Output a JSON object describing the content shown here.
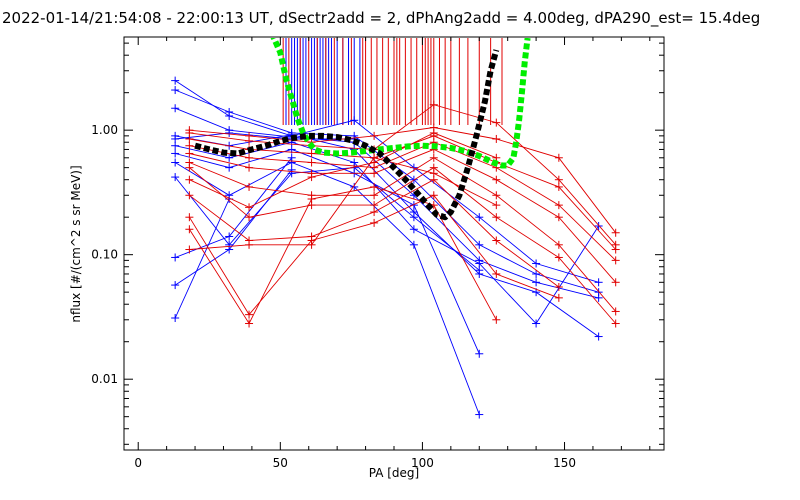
{
  "chart_data": {
    "type": "line",
    "title": "2022-01-14/21:54:08 - 22:00:13 UT, dSectr2add = 2, dPhAng2add = 4.00deg, dPA290_est=  15.4deg",
    "xlabel": "PA [deg]",
    "ylabel": "nflux [#/(cm^2 s sr MeV)]",
    "xlim": [
      -5,
      185
    ],
    "ylim": [
      0.0027,
      5.6
    ],
    "yscale": "log",
    "grid": false,
    "x_ticks": [
      0,
      50,
      100,
      150
    ],
    "x_tick_labels": [
      "0",
      "50",
      "100",
      "150"
    ],
    "y_ticks": [
      0.01,
      0.1,
      1.0
    ],
    "y_tick_labels": [
      "0.01",
      "0.10",
      "1.00"
    ],
    "colors": {
      "blue": "#0000ff",
      "red": "#e00000",
      "black": "#000000",
      "green": "#00ee00"
    },
    "series": [
      {
        "color": "blue",
        "x": [
          13,
          32,
          54,
          76,
          97,
          120,
          140,
          162
        ],
        "y": [
          2.5,
          1.3,
          0.9,
          1.2,
          0.5,
          0.2,
          0.085,
          0.06
        ]
      },
      {
        "color": "blue",
        "x": [
          13,
          32,
          54,
          76,
          97,
          120,
          140,
          162
        ],
        "y": [
          2.1,
          1.4,
          0.95,
          0.9,
          0.4,
          0.12,
          0.07,
          0.05
        ]
      },
      {
        "color": "blue",
        "x": [
          13,
          32,
          54,
          76,
          97,
          120,
          140,
          162
        ],
        "y": [
          1.5,
          1.0,
          0.88,
          0.8,
          0.3,
          0.09,
          0.06,
          0.045
        ]
      },
      {
        "color": "blue",
        "x": [
          13,
          32,
          54,
          76,
          97,
          120,
          140,
          162
        ],
        "y": [
          0.9,
          0.75,
          0.92,
          0.7,
          0.22,
          0.07,
          0.05,
          0.022
        ]
      },
      {
        "color": "blue",
        "x": [
          13,
          32,
          54,
          76,
          97,
          120,
          140,
          162
        ],
        "y": [
          0.75,
          0.6,
          0.8,
          0.55,
          0.16,
          0.085,
          0.028,
          0.17
        ]
      },
      {
        "color": "blue",
        "x": [
          13,
          32,
          54,
          76,
          97,
          120
        ],
        "y": [
          0.65,
          0.5,
          0.7,
          0.45,
          0.25,
          0.016
        ]
      },
      {
        "color": "blue",
        "x": [
          13,
          32,
          54,
          76,
          97,
          120
        ],
        "y": [
          0.55,
          0.3,
          0.55,
          0.35,
          0.12,
          0.0052
        ]
      },
      {
        "color": "blue",
        "x": [
          13,
          32,
          54,
          76,
          97,
          120
        ],
        "y": [
          0.42,
          0.12,
          0.45,
          0.5,
          0.2,
          0.075
        ]
      },
      {
        "color": "blue",
        "x": [
          13,
          32,
          54
        ],
        "y": [
          0.095,
          0.14,
          0.6
        ]
      },
      {
        "color": "blue",
        "x": [
          13,
          32,
          54
        ],
        "y": [
          0.057,
          0.11,
          0.48
        ]
      },
      {
        "color": "blue",
        "x": [
          13,
          32
        ],
        "y": [
          0.031,
          0.28
        ]
      },
      {
        "color": "blue",
        "x": [
          13,
          32,
          54,
          76
        ],
        "y": [
          0.85,
          0.95,
          0.85,
          0.85
        ]
      },
      {
        "color": "red",
        "x": [
          18,
          39,
          61,
          83,
          104,
          126,
          148,
          168
        ],
        "y": [
          1.0,
          0.9,
          0.8,
          0.9,
          1.05,
          0.85,
          0.6,
          0.15
        ]
      },
      {
        "color": "red",
        "x": [
          18,
          39,
          61,
          83,
          104,
          126,
          148,
          168
        ],
        "y": [
          0.95,
          0.82,
          0.75,
          0.7,
          1.6,
          1.15,
          0.4,
          0.12
        ]
      },
      {
        "color": "red",
        "x": [
          18,
          39,
          61,
          83,
          104,
          126,
          148,
          168
        ],
        "y": [
          0.85,
          0.7,
          0.65,
          0.6,
          0.9,
          0.55,
          0.35,
          0.11
        ]
      },
      {
        "color": "red",
        "x": [
          18,
          39,
          61,
          83,
          104,
          126,
          148,
          168
        ],
        "y": [
          0.75,
          0.6,
          0.55,
          0.5,
          0.8,
          0.5,
          0.25,
          0.09
        ]
      },
      {
        "color": "red",
        "x": [
          18,
          39,
          61,
          83,
          104,
          126,
          148,
          168
        ],
        "y": [
          0.65,
          0.5,
          0.45,
          0.45,
          0.7,
          0.4,
          0.2,
          0.06
        ]
      },
      {
        "color": "red",
        "x": [
          18,
          39,
          61,
          83,
          104,
          126,
          148,
          168
        ],
        "y": [
          0.55,
          0.35,
          0.3,
          0.3,
          0.6,
          0.3,
          0.12,
          0.035
        ]
      },
      {
        "color": "red",
        "x": [
          18,
          39,
          61,
          83,
          104,
          126,
          148,
          168
        ],
        "y": [
          0.5,
          0.2,
          0.25,
          0.25,
          0.5,
          0.2,
          0.095,
          0.028
        ]
      },
      {
        "color": "red",
        "x": [
          18,
          39,
          61,
          83,
          104,
          126,
          148
        ],
        "y": [
          0.3,
          0.13,
          0.14,
          0.22,
          0.4,
          0.13,
          0.055
        ]
      },
      {
        "color": "red",
        "x": [
          18,
          39,
          61,
          83,
          104,
          126,
          148
        ],
        "y": [
          0.2,
          0.033,
          0.13,
          0.18,
          0.3,
          0.07,
          0.045
        ]
      },
      {
        "color": "red",
        "x": [
          18,
          39,
          61,
          83,
          104,
          126
        ],
        "y": [
          0.16,
          0.028,
          0.28,
          0.35,
          0.25,
          0.03
        ]
      },
      {
        "color": "red",
        "x": [
          18,
          39,
          61,
          83,
          104,
          126
        ],
        "y": [
          0.11,
          0.12,
          0.12,
          0.6,
          0.45,
          0.25
        ]
      },
      {
        "color": "red",
        "x": [
          18,
          39,
          61,
          83,
          104,
          126
        ],
        "y": [
          0.4,
          0.24,
          0.42,
          0.55,
          0.95,
          0.6
        ]
      }
    ],
    "black_curve": {
      "x": [
        20,
        25,
        30,
        35,
        40,
        45,
        50,
        55,
        60,
        65,
        70,
        75,
        80,
        85,
        90,
        95,
        100,
        105,
        108,
        110,
        113,
        116,
        119,
        122,
        124,
        126
      ],
      "y": [
        0.75,
        0.7,
        0.66,
        0.65,
        0.7,
        0.75,
        0.82,
        0.87,
        0.9,
        0.9,
        0.88,
        0.83,
        0.75,
        0.65,
        0.5,
        0.38,
        0.28,
        0.21,
        0.2,
        0.22,
        0.3,
        0.5,
        0.9,
        1.7,
        3.0,
        4.4
      ]
    },
    "green_curve": {
      "x": [
        47,
        50,
        52,
        54,
        56,
        58,
        60,
        62,
        65,
        70,
        75,
        80,
        85,
        90,
        95,
        100,
        105,
        110,
        115,
        120,
        125,
        128,
        130,
        132,
        133,
        134,
        135,
        136,
        137
      ],
      "y": [
        6.0,
        4.2,
        2.6,
        1.8,
        1.25,
        0.95,
        0.8,
        0.7,
        0.66,
        0.65,
        0.66,
        0.68,
        0.7,
        0.72,
        0.74,
        0.75,
        0.74,
        0.72,
        0.68,
        0.62,
        0.55,
        0.52,
        0.52,
        0.6,
        0.8,
        1.2,
        2.0,
        3.5,
        5.5
      ]
    },
    "vertical_markers": [
      {
        "color": "blue",
        "x": [
          52,
          54,
          55,
          56,
          57,
          58,
          59,
          61,
          62,
          63,
          64,
          65,
          66,
          67,
          68,
          70,
          72,
          74,
          76,
          78
        ]
      },
      {
        "color": "red",
        "x": [
          51,
          53,
          57,
          60,
          63,
          66,
          69,
          72,
          75,
          79,
          80,
          82,
          84,
          86,
          88,
          90,
          91,
          92,
          94,
          96,
          98,
          100,
          101,
          102,
          103,
          104,
          106,
          108,
          110,
          113,
          116,
          120,
          124,
          128
        ]
      }
    ]
  }
}
